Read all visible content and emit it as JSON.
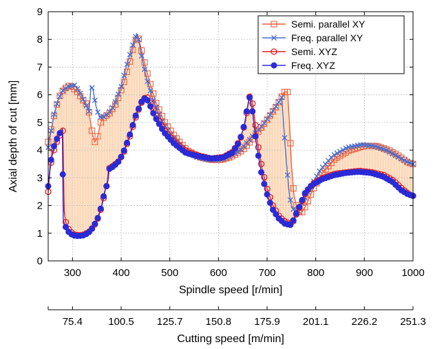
{
  "colors": {
    "semi_parallel": "#E8603C",
    "freq_parallel": "#4A6FD0",
    "semi_xyz": "#E8191E",
    "freq_xyz": "#2B2BD6",
    "fill": "#F6A55C",
    "grid": "#bfbfbf"
  },
  "chart_data": {
    "type": "line",
    "xlabel": "Spindle speed [r/min]",
    "ylabel": "Axial depth of cut [mm]",
    "secondary_xlabel": "Cutting speed [m/min]",
    "xlim": [
      250,
      1000
    ],
    "ylim": [
      0,
      9
    ],
    "grid": true,
    "legend_position": "top-right",
    "x_ticks": [
      300,
      400,
      500,
      600,
      700,
      800,
      900,
      1000
    ],
    "x_tick_labels": [
      "300",
      "400",
      "500",
      "600",
      "700",
      "800",
      "900",
      "1000"
    ],
    "y_ticks": [
      0,
      1,
      2,
      3,
      4,
      5,
      6,
      7,
      8,
      9
    ],
    "y_tick_labels": [
      "0",
      "1",
      "2",
      "3",
      "4",
      "5",
      "6",
      "7",
      "8",
      "9"
    ],
    "secondary_x_ticks": [
      300,
      400,
      500,
      600,
      700,
      800,
      900,
      1000
    ],
    "secondary_x_tick_labels": [
      "75.4",
      "100.5",
      "125.7",
      "150.8",
      "175.9",
      "201.1",
      "226.2",
      "251.3"
    ],
    "series": [
      {
        "name": "Semi. parallel XY",
        "marker": "square",
        "x": [
          250,
          258,
          264,
          272,
          282,
          295,
          310,
          322,
          332,
          338,
          342,
          346,
          352,
          358,
          365,
          375,
          390,
          405,
          418,
          428,
          434,
          438,
          446,
          458,
          472,
          490,
          510,
          535,
          560,
          585,
          605,
          625,
          650,
          675,
          700,
          720,
          735,
          742,
          746,
          750,
          755,
          762,
          770,
          780,
          795,
          815,
          840,
          870,
          900,
          925,
          950,
          970,
          990,
          1000
        ],
        "y": [
          4.3,
          4.9,
          5.4,
          5.9,
          6.2,
          6.35,
          6.1,
          5.8,
          5.6,
          4.9,
          4.5,
          4.3,
          4.5,
          5.0,
          5.2,
          5.3,
          5.7,
          6.4,
          7.2,
          7.9,
          8.15,
          7.9,
          7.3,
          6.5,
          5.7,
          5.0,
          4.5,
          4.0,
          3.75,
          3.65,
          3.65,
          3.75,
          4.0,
          4.5,
          5.1,
          5.6,
          6.1,
          6.1,
          5.0,
          3.5,
          2.4,
          1.85,
          1.7,
          2.0,
          2.6,
          3.2,
          3.7,
          4.0,
          4.15,
          4.15,
          4.0,
          3.8,
          3.55,
          3.5
        ]
      },
      {
        "name": "Freq. parallel XY",
        "marker": "x",
        "x": [
          250,
          256,
          262,
          270,
          280,
          292,
          305,
          318,
          328,
          334,
          338,
          342,
          348,
          355,
          363,
          372,
          385,
          400,
          412,
          424,
          432,
          436,
          442,
          452,
          466,
          485,
          505,
          530,
          555,
          580,
          600,
          620,
          645,
          670,
          695,
          715,
          730,
          737,
          741,
          745,
          750,
          756,
          765,
          776,
          790,
          810,
          835,
          865,
          895,
          920,
          945,
          965,
          985,
          1000
        ],
        "y": [
          4.1,
          4.7,
          5.3,
          5.8,
          6.15,
          6.3,
          6.35,
          6.0,
          5.6,
          5.4,
          6.3,
          6.2,
          5.6,
          5.2,
          5.2,
          5.3,
          5.6,
          6.3,
          7.1,
          7.8,
          8.2,
          8.0,
          7.4,
          6.6,
          5.8,
          5.0,
          4.5,
          4.0,
          3.75,
          3.65,
          3.65,
          3.75,
          4.0,
          4.5,
          5.0,
          5.5,
          5.9,
          4.2,
          3.3,
          2.5,
          2.0,
          1.8,
          1.85,
          2.2,
          2.7,
          3.3,
          3.8,
          4.1,
          4.2,
          4.15,
          4.0,
          3.8,
          3.6,
          3.5
        ]
      },
      {
        "name": "Semi. XYZ",
        "marker": "circle",
        "x": [
          250,
          254,
          258,
          264,
          270,
          276,
          280,
          283,
          286,
          290,
          296,
          304,
          314,
          324,
          334,
          344,
          354,
          362,
          368,
          372,
          374,
          376,
          385,
          395,
          405,
          418,
          432,
          444,
          452,
          458,
          470,
          490,
          510,
          535,
          560,
          585,
          610,
          630,
          645,
          655,
          662,
          666,
          672,
          680,
          690,
          700,
          712,
          725,
          738,
          748,
          752,
          758,
          768,
          780,
          795,
          815,
          840,
          865,
          890,
          915,
          940,
          960,
          978,
          992,
          1000
        ],
        "y": [
          2.5,
          3.3,
          3.8,
          4.1,
          4.4,
          4.6,
          4.7,
          1.8,
          1.4,
          1.2,
          1.05,
          0.95,
          0.92,
          0.95,
          1.05,
          1.25,
          1.6,
          2.1,
          2.6,
          2.8,
          3.0,
          3.35,
          3.45,
          3.6,
          3.9,
          4.5,
          5.3,
          5.8,
          5.95,
          5.8,
          5.3,
          4.7,
          4.3,
          3.95,
          3.8,
          3.7,
          3.75,
          3.95,
          4.4,
          5.0,
          5.8,
          6.05,
          5.5,
          4.3,
          3.3,
          2.6,
          2.0,
          1.6,
          1.4,
          1.35,
          1.35,
          1.6,
          2.0,
          2.5,
          2.8,
          3.0,
          3.15,
          3.2,
          3.25,
          3.2,
          3.1,
          2.9,
          2.6,
          2.4,
          2.35
        ]
      },
      {
        "name": "Freq. XYZ",
        "marker": "dot",
        "x": [
          250,
          254,
          258,
          263,
          269,
          275,
          279,
          281,
          284,
          288,
          294,
          302,
          312,
          322,
          332,
          342,
          352,
          360,
          366,
          370,
          372,
          374,
          383,
          393,
          403,
          416,
          430,
          442,
          450,
          456,
          468,
          488,
          508,
          533,
          558,
          583,
          608,
          628,
          643,
          653,
          660,
          664,
          670,
          678,
          688,
          698,
          710,
          723,
          736,
          746,
          750,
          756,
          766,
          778,
          793,
          813,
          838,
          863,
          888,
          913,
          938,
          958,
          976,
          990,
          1000
        ],
        "y": [
          2.7,
          3.4,
          3.9,
          4.2,
          4.45,
          4.65,
          4.75,
          1.5,
          1.3,
          1.15,
          1.0,
          0.92,
          0.9,
          0.92,
          1.0,
          1.2,
          1.55,
          2.0,
          2.5,
          2.7,
          2.9,
          3.3,
          3.4,
          3.55,
          3.85,
          4.45,
          5.25,
          5.75,
          5.9,
          5.75,
          5.25,
          4.65,
          4.25,
          3.9,
          3.78,
          3.7,
          3.72,
          3.9,
          4.3,
          4.9,
          5.6,
          5.9,
          5.4,
          4.2,
          3.2,
          2.5,
          1.9,
          1.55,
          1.35,
          1.3,
          1.3,
          1.55,
          1.95,
          2.45,
          2.75,
          2.95,
          3.1,
          3.18,
          3.22,
          3.18,
          3.05,
          2.85,
          2.55,
          2.4,
          2.35
        ]
      }
    ]
  }
}
